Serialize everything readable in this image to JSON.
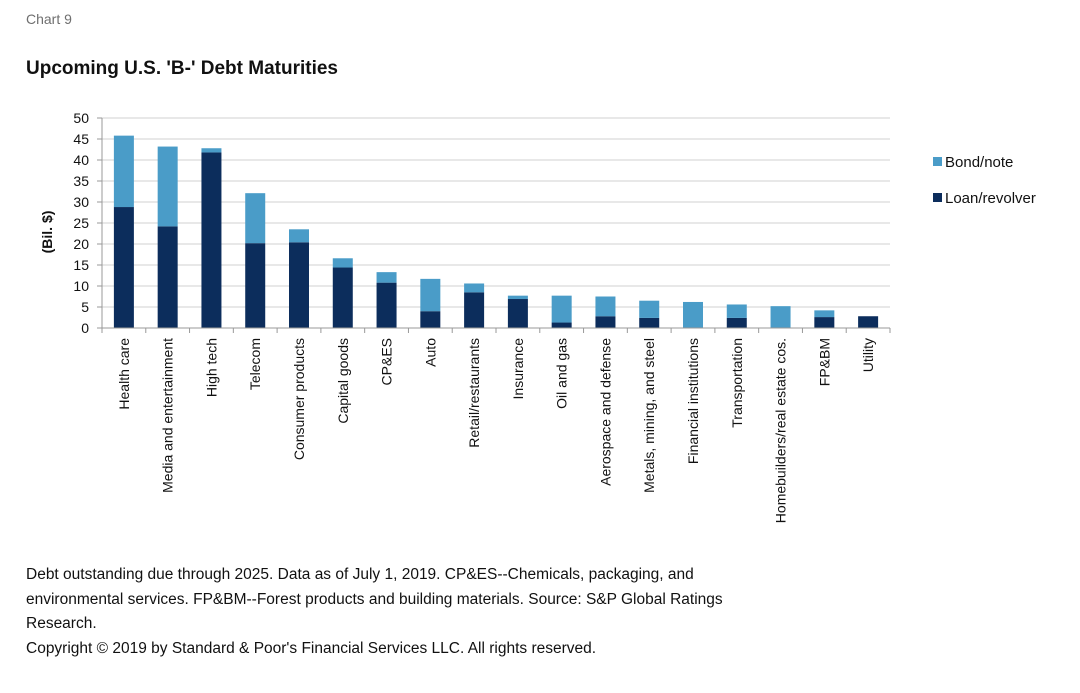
{
  "header": {
    "chart_label": "Chart 9",
    "title": "Upcoming U.S. 'B-' Debt Maturities"
  },
  "footer": {
    "note_line1": "Debt outstanding due through 2025. Data as of July 1, 2019. CP&ES--Chemicals, packaging, and",
    "note_line2": "environmental services. FP&BM--Forest products and building materials. Source: S&P Global Ratings",
    "note_line3": "Research.",
    "copyright": "Copyright © 2019 by Standard & Poor's Financial Services LLC. All rights reserved."
  },
  "colors": {
    "bond_note": "#4a9cc8",
    "loan_revolver": "#0c2d5c",
    "gridline": "#d0d0d0",
    "axis": "#999999"
  },
  "chart_data": {
    "type": "bar",
    "stacked": true,
    "title": "Upcoming U.S. 'B-' Debt Maturities",
    "xlabel": "",
    "ylabel": "(Bil. $)",
    "ylim": [
      0,
      50
    ],
    "yticks": [
      0,
      5,
      10,
      15,
      20,
      25,
      30,
      35,
      40,
      45,
      50
    ],
    "grid": true,
    "legend_position": "right",
    "categories": [
      "Health care",
      "Media and entertainment",
      "High tech",
      "Telecom",
      "Consumer products",
      "Capital goods",
      "CP&ES",
      "Auto",
      "Retail/restaurants",
      "Insurance",
      "Oil and gas",
      "Aerospace and defense",
      "Metals, mining, and steel",
      "Financial institutions",
      "Transportation",
      "Homebuilders/real estate cos.",
      "FP&BM",
      "Utility"
    ],
    "series": [
      {
        "name": "Loan/revolver",
        "color": "#0c2d5c",
        "values": [
          28.8,
          24.2,
          41.8,
          20.2,
          20.4,
          14.4,
          10.8,
          4.0,
          8.5,
          6.9,
          1.3,
          2.8,
          2.4,
          0,
          2.4,
          0,
          2.6,
          2.8
        ]
      },
      {
        "name": "Bond/note",
        "color": "#4a9cc8",
        "values": [
          17.0,
          19.0,
          1.0,
          11.9,
          3.1,
          2.2,
          2.5,
          7.7,
          2.1,
          0.8,
          6.4,
          4.7,
          4.1,
          6.2,
          3.2,
          5.2,
          1.6,
          0
        ]
      }
    ],
    "legend": [
      "Bond/note",
      "Loan/revolver"
    ]
  }
}
